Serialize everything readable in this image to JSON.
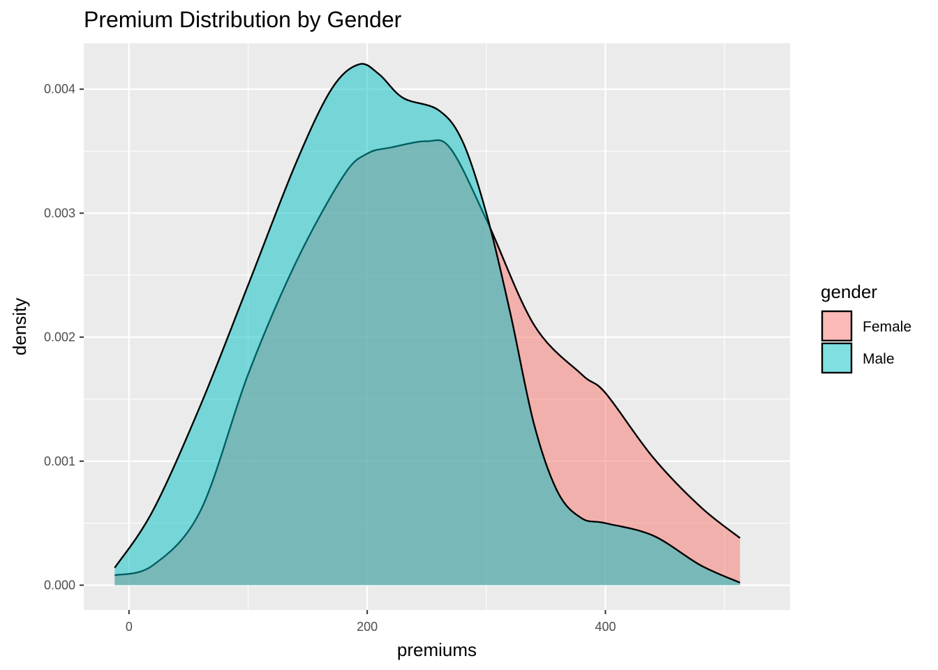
{
  "chart_data": {
    "type": "area",
    "title": "Premium Distribution by Gender",
    "xlabel": "premiums",
    "ylabel": "density",
    "xlim": [
      -38,
      555
    ],
    "ylim": [
      -0.0002,
      0.00437
    ],
    "x_ticks": [
      0,
      200,
      400
    ],
    "x_tick_labels": [
      "0",
      "200",
      "400"
    ],
    "y_ticks": [
      0.0,
      0.001,
      0.002,
      0.003,
      0.004
    ],
    "y_tick_labels": [
      "0.000",
      "0.001",
      "0.002",
      "0.003",
      "0.004"
    ],
    "grid": true,
    "legend": {
      "title": "gender",
      "position": "right"
    },
    "series": [
      {
        "name": "Female",
        "color": "#F8766D",
        "x": [
          -12,
          20,
          60,
          100,
          140,
          180,
          200,
          220,
          250,
          270,
          300,
          340,
          380,
          400,
          440,
          480,
          513
        ],
        "y": [
          8e-05,
          0.00016,
          0.0006,
          0.0017,
          0.0026,
          0.0033,
          0.00348,
          0.00353,
          0.00358,
          0.00352,
          0.00295,
          0.0021,
          0.0017,
          0.00155,
          0.00103,
          0.00063,
          0.00038
        ]
      },
      {
        "name": "Male",
        "color": "#00BFC4",
        "x": [
          -12,
          20,
          60,
          100,
          140,
          170,
          193,
          210,
          230,
          260,
          280,
          300,
          320,
          340,
          360,
          380,
          400,
          440,
          480,
          513
        ],
        "y": [
          0.00014,
          0.0006,
          0.00145,
          0.00242,
          0.0034,
          0.004,
          0.0042,
          0.00412,
          0.00393,
          0.00383,
          0.00358,
          0.003,
          0.0022,
          0.0013,
          0.00075,
          0.00054,
          0.0005,
          0.0004,
          0.00016,
          2e-05
        ]
      }
    ]
  }
}
